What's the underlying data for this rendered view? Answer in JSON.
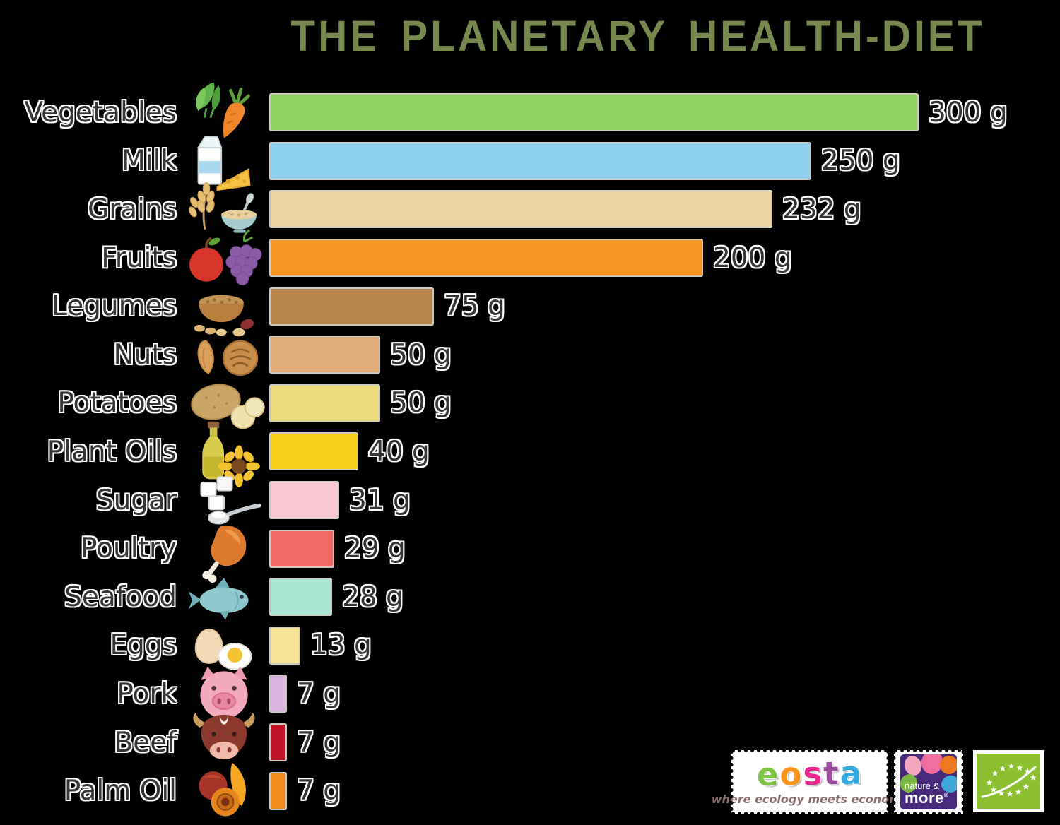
{
  "title": "THE PLANETARY HEALTH-DIET",
  "colors": {
    "background": "#000000",
    "title_text": "#76884E",
    "label_text": "#353535",
    "bar_outline": "#F0ECE2"
  },
  "chart_data": {
    "type": "bar",
    "orientation": "horizontal",
    "title": "THE PLANETARY HEALTH-DIET",
    "unit": "g",
    "xlim": [
      0,
      300
    ],
    "grid": false,
    "legend": false,
    "value_labels_position": "right-of-bar",
    "categories": [
      "Vegetables",
      "Milk",
      "Grains",
      "Fruits",
      "Legumes",
      "Nuts",
      "Potatoes",
      "Plant Oils",
      "Sugar",
      "Poultry",
      "Seafood",
      "Eggs",
      "Pork",
      "Beef",
      "Palm Oil"
    ],
    "values": [
      300,
      250,
      232,
      200,
      75,
      50,
      50,
      40,
      31,
      29,
      28,
      13,
      7,
      7,
      7
    ],
    "value_texts": [
      "300 g",
      "250 g",
      "232 g",
      "200 g",
      "75 g",
      "50 g",
      "50 g",
      "40 g",
      "31 g",
      "29 g",
      "28 g",
      "13 g",
      "7 g",
      "7 g",
      "7 g"
    ],
    "bar_colors": [
      "#92D364",
      "#8FD1F0",
      "#EBD2A1",
      "#F89421",
      "#B8874F",
      "#DFAC7C",
      "#EDDC7E",
      "#F6CE1B",
      "#F8C8D5",
      "#F26A6A",
      "#A9E5D2",
      "#F9E59A",
      "#D9B4E1",
      "#C21429",
      "#F28A1C"
    ],
    "icons": [
      "vegetables-icon",
      "milk-icon",
      "grains-icon",
      "fruits-icon",
      "legumes-icon",
      "nuts-icon",
      "potatoes-icon",
      "plant-oils-icon",
      "sugar-icon",
      "poultry-icon",
      "seafood-icon",
      "eggs-icon",
      "pork-icon",
      "beef-icon",
      "palm-oil-icon"
    ]
  },
  "footer": {
    "eosta": {
      "name": "eosta",
      "letter_colors": [
        "#7DC242",
        "#F7941E",
        "#EC268F",
        "#9C4E9E",
        "#31AADF"
      ],
      "tagline": "where ecology meets economy"
    },
    "nature_more": {
      "line1": "nature &",
      "line2": "more",
      "registered_mark": "®",
      "background": "#472A7B"
    },
    "eu_organic": {
      "icon": "eu-organic-leaf-icon",
      "background": "#8CBF2F"
    }
  }
}
